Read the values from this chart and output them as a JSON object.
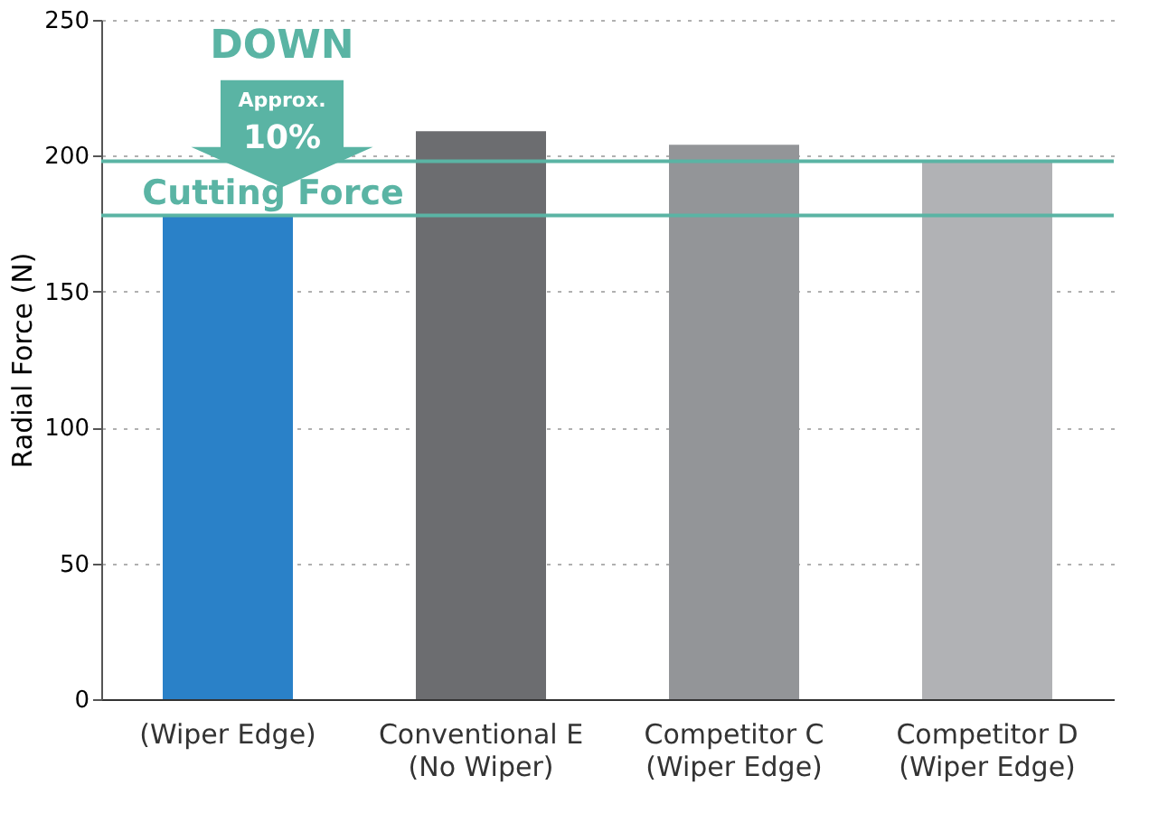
{
  "chart_data": {
    "type": "bar",
    "ylabel": "Radial Force (N)",
    "categories": [
      "(Wiper Edge)",
      "Conventional E\n(No Wiper)",
      "Competitor C\n(Wiper Edge)",
      "Competitor D\n(Wiper Edge)"
    ],
    "values": [
      178,
      209,
      204,
      198
    ],
    "colors": [
      "#2a81c8",
      "#6c6d70",
      "#939598",
      "#b1b2b5"
    ],
    "ylim": [
      0,
      250
    ],
    "yticks": [
      0,
      50,
      100,
      150,
      200,
      250
    ],
    "grid": "y",
    "ref_lines": [
      {
        "axis": "y",
        "value": 198,
        "color": "#5ab4a4"
      },
      {
        "axis": "y",
        "value": 178,
        "color": "#5ab4a4"
      }
    ],
    "annotations": [
      "DOWN",
      "Approx.",
      "10%",
      "Cutting Force"
    ]
  }
}
